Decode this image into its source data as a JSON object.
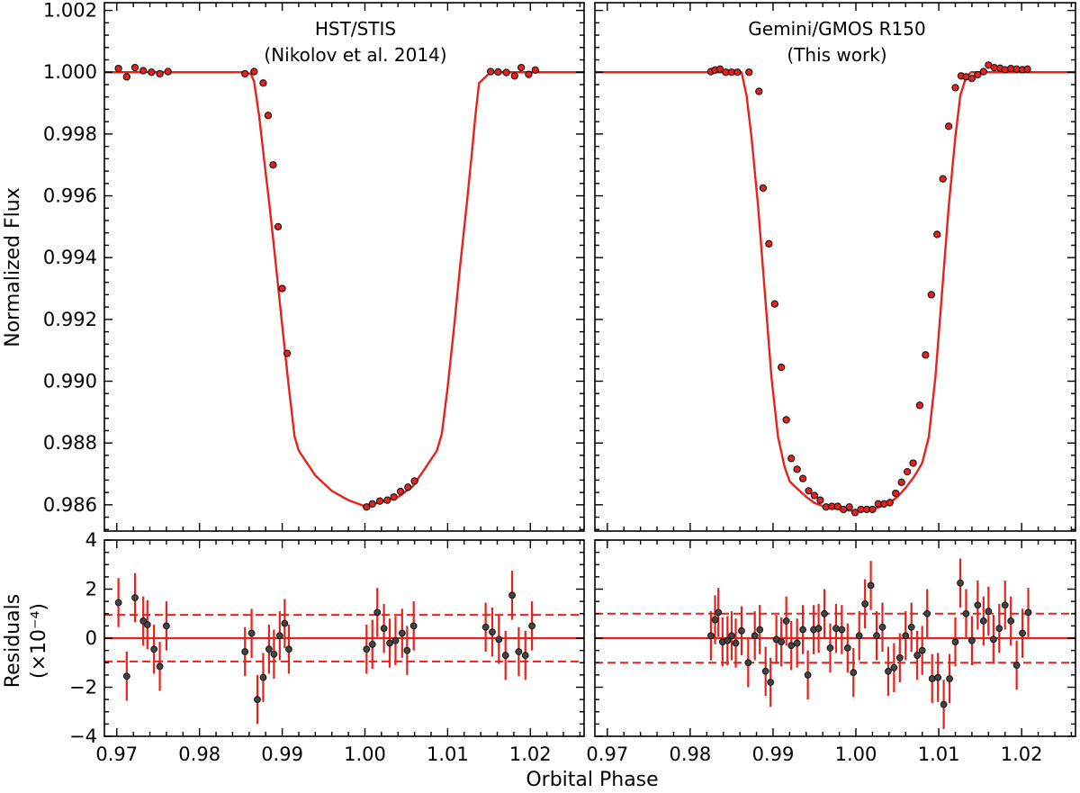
{
  "chart_data": {
    "type": "scatter",
    "xlabel": "Orbital Phase",
    "ylabel_top": "Normalized Flux",
    "ylabel_bottom_line1": "Residuals",
    "ylabel_bottom_line2": "(×10⁻⁴)",
    "xlim": [
      0.9685,
      1.0265
    ],
    "ylim_top": [
      0.98515,
      1.00225
    ],
    "ylim_bottom": [
      -4,
      4
    ],
    "x_ticks": [
      "0.97",
      "0.98",
      "0.99",
      "1.00",
      "1.01",
      "1.02"
    ],
    "y_ticks_top": [
      "1.002",
      "1.000",
      "0.998",
      "0.996",
      "0.994",
      "0.992",
      "0.990",
      "0.988",
      "0.986"
    ],
    "y_ticks_bottom": [
      "4",
      "2",
      "0",
      "−2",
      "−4"
    ],
    "colors": {
      "model": "#e8211c",
      "points": "#e8211c",
      "errorbars": "#e8211c"
    },
    "panels": [
      {
        "title_line1": "HST/STIS",
        "title_line2": "(Nikolov et al. 2014)",
        "residual_sigma": 0.95,
        "model": {
          "x": [
            0.9685,
            0.985,
            0.9862,
            0.9866,
            0.9872,
            0.9878,
            0.9885,
            0.9893,
            0.99,
            0.9908,
            0.9915,
            0.992,
            0.9925,
            0.994,
            0.996,
            0.998,
            1.0,
            1.002,
            1.004,
            1.0058,
            1.0072,
            1.0082,
            1.0087,
            1.0093,
            1.01,
            1.0108,
            1.0115,
            1.0123,
            1.0129,
            1.0134,
            1.0138,
            1.0152,
            1.0265
          ],
          "y": [
            1.0,
            1.0,
            0.99995,
            0.9997,
            0.9986,
            0.9972,
            0.9956,
            0.9936,
            0.9918,
            0.9898,
            0.9882,
            0.98775,
            0.98755,
            0.98695,
            0.98645,
            0.98615,
            0.98595,
            0.9861,
            0.98625,
            0.9866,
            0.98715,
            0.98755,
            0.98775,
            0.9883,
            0.9898,
            0.9918,
            0.9937,
            0.9957,
            0.9973,
            0.9987,
            0.99965,
            1.0,
            1.0
          ]
        },
        "points": {
          "x": [
            0.9702,
            0.9712,
            0.9722,
            0.9732,
            0.9742,
            0.9752,
            0.9762,
            0.9855,
            0.9866,
            0.9877,
            0.9883,
            0.9889,
            0.9895,
            0.99,
            0.9906,
            1.0002,
            1.0009,
            1.0018,
            1.0027,
            1.0035,
            1.0043,
            1.0052,
            1.006,
            1.0152,
            1.0161,
            1.0171,
            1.0181,
            1.0189,
            1.0198,
            1.0206
          ],
          "y": [
            1.00012,
            0.99985,
            1.00015,
            1.00005,
            1.0,
            0.99995,
            1.00002,
            0.99995,
            1.00002,
            0.99965,
            0.9986,
            0.997,
            0.995,
            0.993,
            0.9909,
            0.98593,
            0.98603,
            0.98612,
            0.98615,
            0.98625,
            0.98643,
            0.98657,
            0.98677,
            1.00002,
            1.00001,
            0.99999,
            0.99988,
            1.00015,
            0.99993,
            1.00007
          ]
        },
        "residuals": {
          "x": [
            0.9702,
            0.9712,
            0.9722,
            0.9732,
            0.9737,
            0.9745,
            0.9752,
            0.976,
            0.9855,
            0.9863,
            0.987,
            0.9877,
            0.9884,
            0.989,
            0.9897,
            0.9903,
            0.9908,
            1.0002,
            1.0009,
            1.0015,
            1.0023,
            1.003,
            1.0037,
            1.0045,
            1.0051,
            1.0059,
            1.0146,
            1.0154,
            1.0162,
            1.017,
            1.0178,
            1.0186,
            1.0194,
            1.0202
          ],
          "y": [
            1.45,
            -1.55,
            1.65,
            0.7,
            0.55,
            -0.45,
            -1.15,
            0.5,
            -0.55,
            0.2,
            -2.5,
            -1.6,
            -0.45,
            -0.65,
            0.1,
            0.6,
            -0.45,
            -0.45,
            -0.25,
            1.05,
            0.4,
            -0.2,
            -0.1,
            0.2,
            -0.5,
            0.5,
            0.45,
            0.25,
            -0.05,
            -0.7,
            1.75,
            -0.55,
            -0.7,
            0.5
          ]
        }
      },
      {
        "title_line1": "Gemini/GMOS R150",
        "title_line2": "(This work)",
        "residual_sigma": 1.0,
        "model": {
          "x": [
            0.9685,
            0.9862,
            0.9868,
            0.9874,
            0.9882,
            0.989,
            0.9898,
            0.9906,
            0.9914,
            0.992,
            0.9928,
            0.994,
            0.995,
            0.996,
            0.997,
            0.998,
            0.999,
            1.0,
            1.001,
            1.002,
            1.003,
            1.004,
            1.005,
            1.006,
            1.007,
            1.008,
            1.0088,
            1.0096,
            1.0104,
            1.0112,
            1.012,
            1.0126,
            1.0133,
            1.0139,
            1.0265
          ],
          "y": [
            1.0,
            1.0,
            0.99925,
            0.9979,
            0.99565,
            0.9929,
            0.99015,
            0.9882,
            0.98722,
            0.98676,
            0.98655,
            0.98626,
            0.98606,
            0.98596,
            0.98589,
            0.98586,
            0.98582,
            0.9858,
            0.98582,
            0.98586,
            0.98594,
            0.98606,
            0.98625,
            0.98655,
            0.9869,
            0.98735,
            0.9882,
            0.99015,
            0.9929,
            0.99565,
            0.9979,
            0.99925,
            0.99985,
            1.0,
            1.0
          ]
        },
        "points": {
          "x": [
            0.9825,
            0.983,
            0.9836,
            0.9843,
            0.985,
            0.9857,
            0.9871,
            0.9883,
            0.9888,
            0.9895,
            0.9902,
            0.991,
            0.9916,
            0.9922,
            0.9929,
            0.9936,
            0.9943,
            0.995,
            0.9957,
            0.9964,
            0.9971,
            0.9978,
            0.9985,
            0.9992,
            0.9999,
            1.0006,
            1.0013,
            1.002,
            1.0027,
            1.0034,
            1.0041,
            1.0048,
            1.0055,
            1.0062,
            1.0069,
            1.0077,
            1.0084,
            1.0091,
            1.0098,
            1.0105,
            1.0112,
            1.012,
            1.0127,
            1.0133,
            1.014,
            1.0147,
            1.0154,
            1.016,
            1.0167,
            1.0174,
            1.018,
            1.0187,
            1.0194,
            1.0201,
            1.0207
          ],
          "y": [
            1.00002,
            1.00007,
            1.0001,
            1.0,
            1.0,
            1.0,
            1.0,
            0.99938,
            0.99625,
            0.99445,
            0.9925,
            0.99045,
            0.98875,
            0.9875,
            0.98715,
            0.98685,
            0.98645,
            0.9863,
            0.98615,
            0.98593,
            0.98595,
            0.98595,
            0.98585,
            0.98593,
            0.98575,
            0.98585,
            0.98585,
            0.98585,
            0.98603,
            0.98603,
            0.98607,
            0.98637,
            0.98673,
            0.98707,
            0.98735,
            0.98922,
            0.99085,
            0.9928,
            0.99475,
            0.99655,
            0.99825,
            0.9995,
            0.99988,
            0.99985,
            0.9998,
            0.99992,
            1.00002,
            1.00023,
            1.00015,
            1.00013,
            1.00008,
            1.00012,
            1.0001,
            1.00008,
            1.0001
          ]
        },
        "residuals": {
          "x": [
            0.9825,
            0.983,
            0.9834,
            0.9839,
            0.9845,
            0.985,
            0.9855,
            0.9862,
            0.987,
            0.9878,
            0.9884,
            0.9891,
            0.9897,
            0.9904,
            0.991,
            0.9916,
            0.9922,
            0.9929,
            0.9936,
            0.9942,
            0.9949,
            0.9955,
            0.9962,
            0.9969,
            0.9976,
            0.9983,
            0.999,
            0.9997,
            1.0004,
            1.0011,
            1.0018,
            1.0025,
            1.0032,
            1.0039,
            1.0046,
            1.0053,
            1.006,
            1.0067,
            1.0074,
            1.008,
            1.0086,
            1.0092,
            1.0099,
            1.0106,
            1.0113,
            1.012,
            1.0126,
            1.0133,
            1.014,
            1.0147,
            1.0154,
            1.016,
            1.0166,
            1.0173,
            1.018,
            1.0187,
            1.0194,
            1.0201,
            1.0208
          ],
          "y": [
            0.1,
            0.75,
            1.05,
            -0.15,
            -0.1,
            0.1,
            -0.2,
            0.3,
            -1.0,
            0.1,
            0.35,
            -1.35,
            -1.8,
            -0.05,
            -0.15,
            0.7,
            -0.3,
            -0.2,
            0.35,
            -1.5,
            0.35,
            0.4,
            1.0,
            -0.4,
            0.4,
            0.35,
            -0.4,
            -1.4,
            0.1,
            1.4,
            2.15,
            0.1,
            0.45,
            -1.35,
            -1.2,
            -0.8,
            0.1,
            0.45,
            -0.7,
            -0.5,
            1.0,
            -1.65,
            -1.6,
            -2.7,
            -1.65,
            -0.15,
            2.25,
            1.0,
            -0.1,
            1.35,
            0.7,
            1.1,
            -0.05,
            0.4,
            1.35,
            0.7,
            -1.1,
            0.2,
            1.05
          ]
        }
      }
    ]
  }
}
